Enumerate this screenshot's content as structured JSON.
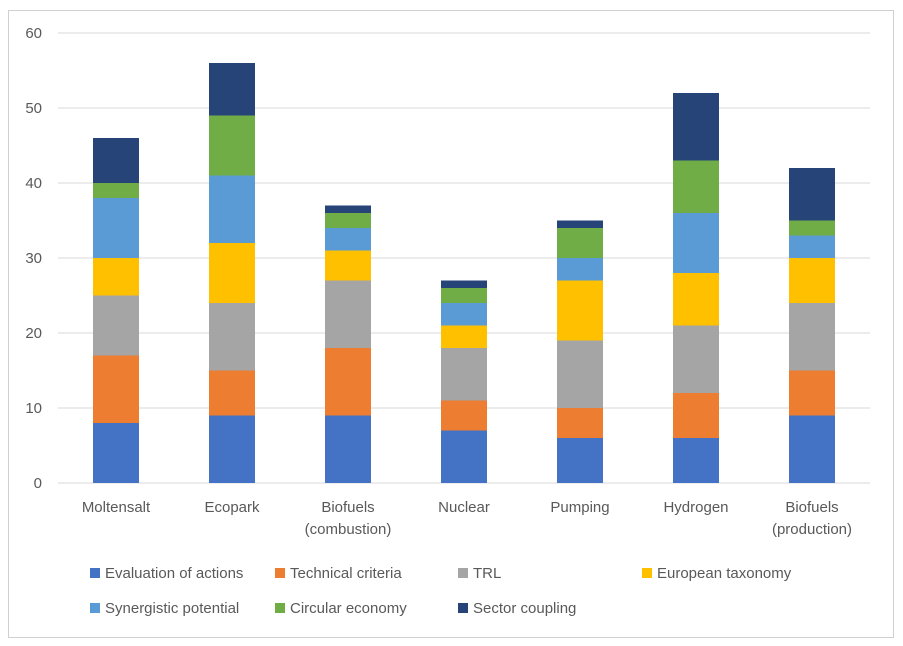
{
  "chart_data": {
    "type": "bar",
    "stacked": true,
    "title": "",
    "xlabel": "",
    "ylabel": "",
    "ylim": [
      0,
      60
    ],
    "yticks": [
      0,
      10,
      20,
      30,
      40,
      50,
      60
    ],
    "grid": true,
    "legend_position": "bottom",
    "categories": [
      [
        "Moltensalt"
      ],
      [
        "Ecopark"
      ],
      [
        "Biofuels",
        "(combustion)"
      ],
      [
        "Nuclear"
      ],
      [
        "Pumping"
      ],
      [
        "Hydrogen"
      ],
      [
        "Biofuels",
        "(production)"
      ]
    ],
    "series": [
      {
        "name": "Evaluation of actions",
        "color": "#4472C4",
        "values": [
          8,
          9,
          9,
          7,
          6,
          6,
          9
        ]
      },
      {
        "name": "Technical criteria",
        "color": "#ED7D31",
        "values": [
          9,
          6,
          9,
          4,
          4,
          6,
          6
        ]
      },
      {
        "name": "TRL",
        "color": "#A5A5A5",
        "values": [
          8,
          9,
          9,
          7,
          9,
          9,
          9
        ]
      },
      {
        "name": "European taxonomy",
        "color": "#FFC000",
        "values": [
          5,
          8,
          4,
          3,
          8,
          7,
          6
        ]
      },
      {
        "name": "Synergistic potential",
        "color": "#5B9BD5",
        "values": [
          8,
          9,
          3,
          3,
          3,
          8,
          3
        ]
      },
      {
        "name": "Circular economy",
        "color": "#70AD47",
        "values": [
          2,
          8,
          2,
          2,
          4,
          7,
          2
        ]
      },
      {
        "name": "Sector coupling",
        "color": "#264478",
        "values": [
          6,
          7,
          1,
          1,
          1,
          9,
          7
        ]
      }
    ]
  }
}
